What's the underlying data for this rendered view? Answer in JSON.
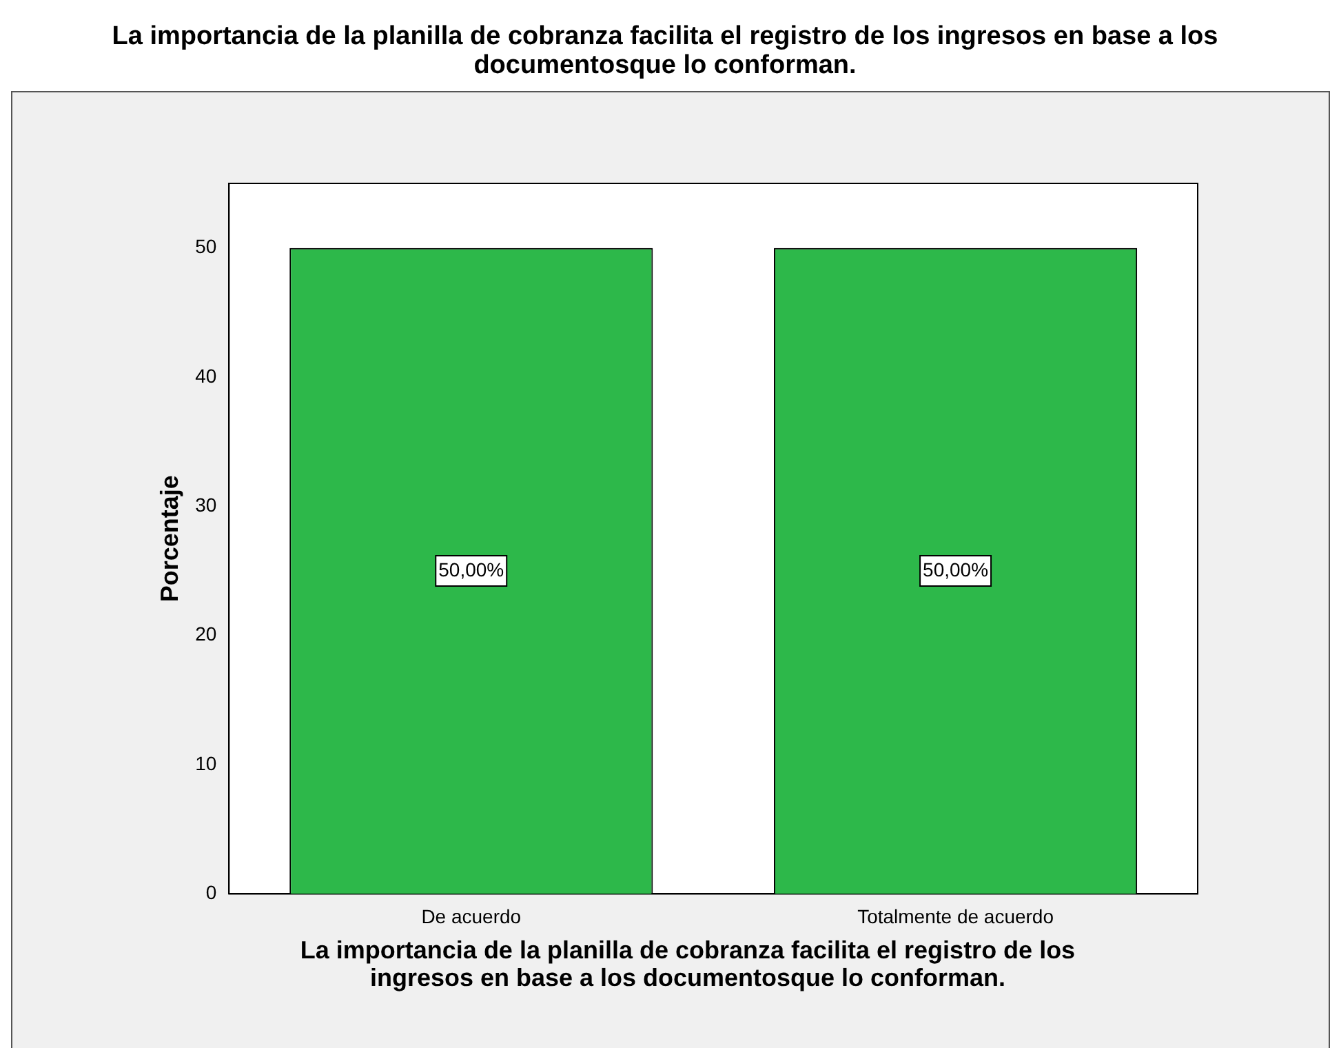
{
  "chart_data": {
    "type": "bar",
    "title": "La importancia de la planilla de cobranza facilita el registro de los ingresos en base a los documentosque lo conforman.",
    "xlabel": "La importancia de la planilla de cobranza facilita el registro de los ingresos en base a los documentosque lo conforman.",
    "ylabel": "Porcentaje",
    "categories": [
      "De acuerdo",
      "Totalmente de acuerdo"
    ],
    "values": [
      50,
      50
    ],
    "color": "#2db84a",
    "value_labels": [
      "50,00%",
      "50,00%"
    ],
    "ylim": [
      0,
      55
    ],
    "yticks": [
      0,
      10,
      20,
      30,
      40,
      50
    ],
    "grid": false,
    "legend": false
  }
}
